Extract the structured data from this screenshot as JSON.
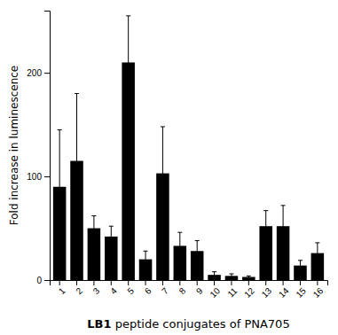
{
  "chart_data": {
    "type": "bar",
    "categories": [
      "1",
      "2",
      "3",
      "4",
      "5",
      "6",
      "7",
      "8",
      "9",
      "10",
      "11",
      "12",
      "13",
      "14",
      "15",
      "16"
    ],
    "values": [
      90,
      115,
      50,
      42,
      210,
      20,
      103,
      33,
      28,
      5,
      4,
      3,
      52,
      52,
      14,
      26
    ],
    "errors": [
      55,
      65,
      12,
      10,
      45,
      8,
      45,
      13,
      10,
      3,
      2,
      1,
      15,
      20,
      5,
      10
    ],
    "color": "#000000",
    "ylabel": "Fold increase in luminescence",
    "xlabel": "LB1 peptide conjugates of PNA705",
    "ylim": [
      0,
      260
    ],
    "yticks": [
      0,
      100,
      200
    ],
    "grid": false
  }
}
